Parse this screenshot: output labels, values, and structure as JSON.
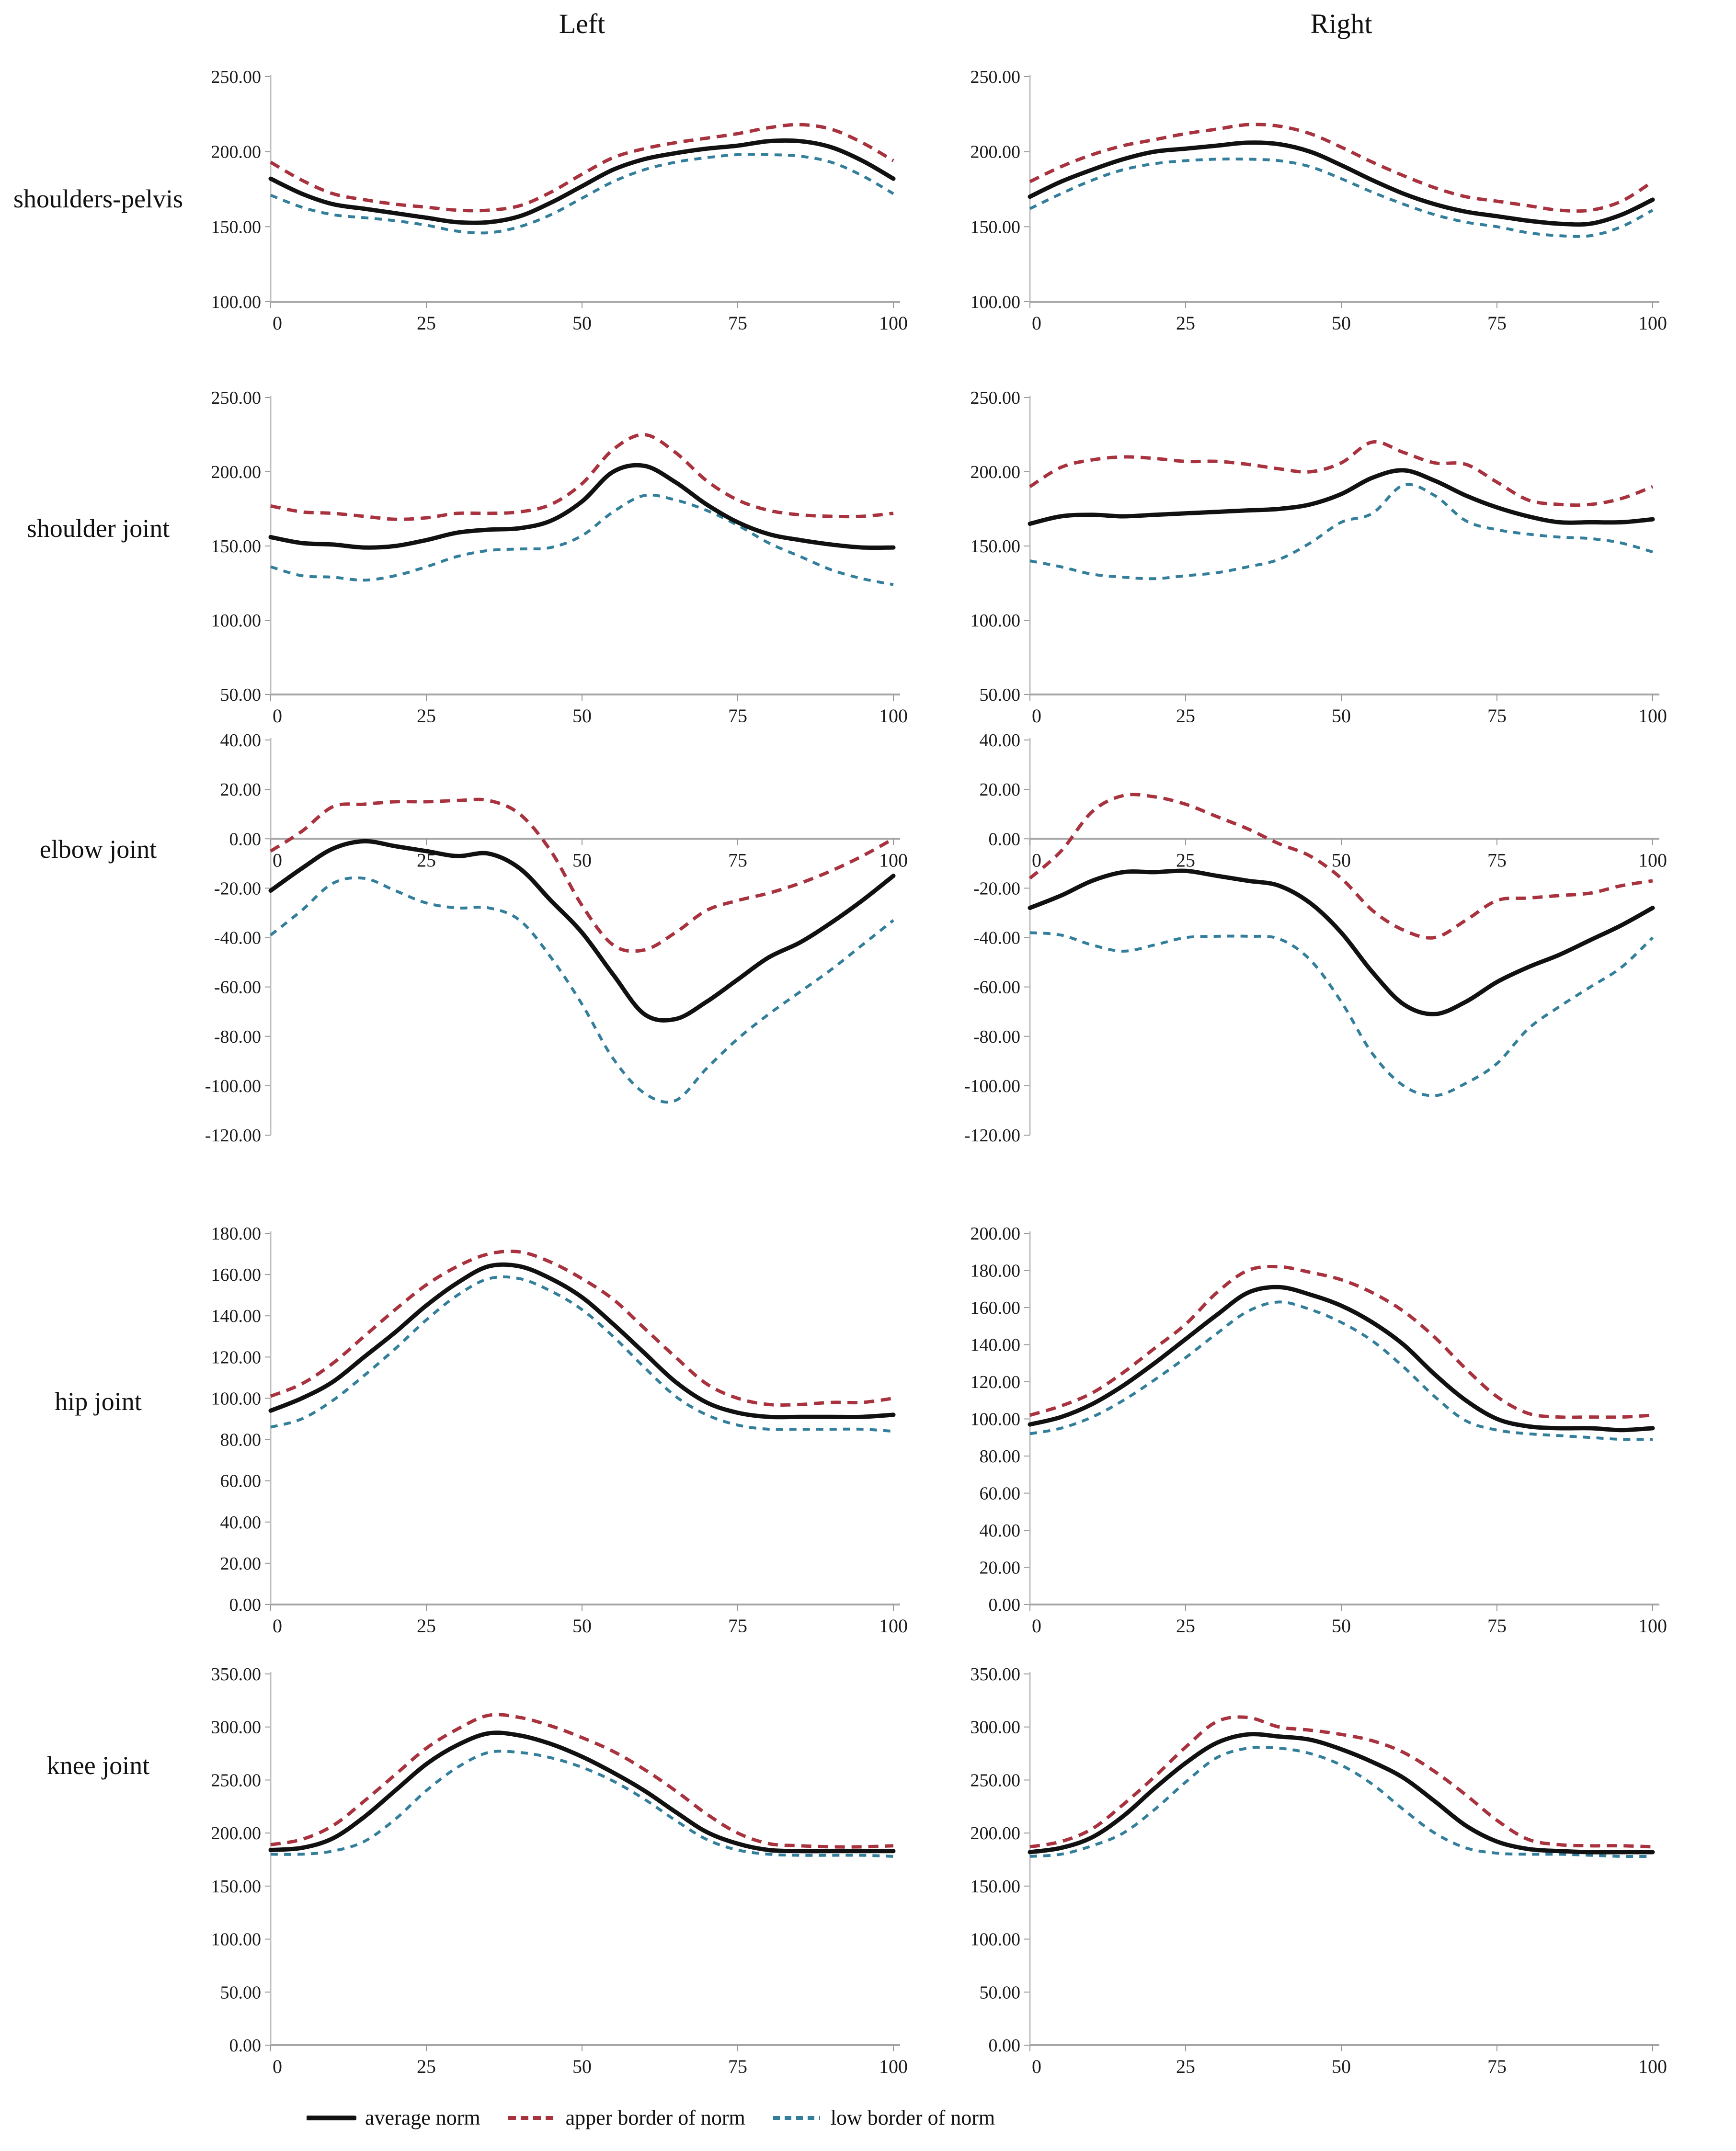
{
  "page": {
    "title_left": "Left",
    "title_right": "Right"
  },
  "colors": {
    "avg": "#111111",
    "upper": "#A8323E",
    "lower": "#337F9B",
    "axis_v": "#BFBFBF",
    "axis_h": "#A6A6A6",
    "tick": "#999999",
    "text": "#1a1a1a"
  },
  "legend": {
    "items": [
      {
        "label": "average norm",
        "series": "avg"
      },
      {
        "label": "apper border of norm",
        "series": "upper"
      },
      {
        "label": "low border of norm",
        "series": "lower"
      }
    ]
  },
  "chart_data": {
    "type": "line",
    "x": [
      0,
      5,
      10,
      15,
      20,
      25,
      30,
      35,
      40,
      45,
      50,
      55,
      60,
      65,
      70,
      75,
      80,
      85,
      90,
      95,
      100
    ],
    "x_ticks": [
      0,
      25,
      50,
      75,
      100
    ],
    "series_names": [
      "average norm",
      "apper border of norm",
      "low border of norm"
    ],
    "rows": [
      {
        "label": "shoulders-pelvis",
        "left": {
          "ylim": [
            100,
            250
          ],
          "ystep": 50,
          "x_axis_at": 100,
          "series": {
            "avg": [
              182,
              172,
              165,
              162,
              159,
              156,
              153,
              153,
              157,
              166,
              177,
              188,
              195,
              199,
              202,
              204,
              207,
              207,
              203,
              194,
              182
            ],
            "upper": [
              193,
              181,
              172,
              168,
              165,
              163,
              161,
              161,
              164,
              173,
              185,
              196,
              202,
              206,
              209,
              212,
              216,
              218,
              215,
              206,
              194
            ],
            "lower": [
              171,
              163,
              158,
              156,
              154,
              151,
              147,
              146,
              150,
              158,
              169,
              180,
              188,
              193,
              196,
              198,
              198,
              197,
              193,
              184,
              172
            ]
          }
        },
        "right": {
          "ylim": [
            100,
            250
          ],
          "ystep": 50,
          "x_axis_at": 100,
          "series": {
            "avg": [
              170,
              180,
              188,
              195,
              200,
              202,
              204,
              206,
              205,
              200,
              191,
              181,
              172,
              165,
              160,
              157,
              154,
              152,
              152,
              158,
              168
            ],
            "upper": [
              180,
              190,
              198,
              204,
              208,
              212,
              215,
              218,
              217,
              212,
              203,
              193,
              184,
              176,
              170,
              167,
              164,
              161,
              161,
              167,
              180
            ],
            "lower": [
              162,
              172,
              181,
              188,
              192,
              194,
              195,
              195,
              194,
              190,
              182,
              173,
              165,
              158,
              153,
              150,
              146,
              144,
              144,
              150,
              161
            ]
          }
        }
      },
      {
        "label": "shoulder joint",
        "left": {
          "ylim": [
            50,
            250
          ],
          "ystep": 50,
          "x_axis_at": 50,
          "series": {
            "avg": [
              156,
              152,
              151,
              149,
              150,
              154,
              159,
              161,
              162,
              167,
              180,
              200,
              204,
              193,
              178,
              166,
              158,
              154,
              151,
              149,
              149
            ],
            "upper": [
              177,
              173,
              172,
              170,
              168,
              169,
              172,
              172,
              173,
              178,
              192,
              215,
              225,
              213,
              194,
              181,
              174,
              171,
              170,
              170,
              172
            ],
            "lower": [
              136,
              130,
              129,
              127,
              130,
              136,
              143,
              147,
              148,
              149,
              157,
              173,
              184,
              181,
              174,
              164,
              152,
              143,
              134,
              128,
              124
            ]
          }
        },
        "right": {
          "ylim": [
            50,
            250
          ],
          "ystep": 50,
          "x_axis_at": 50,
          "series": {
            "avg": [
              165,
              170,
              171,
              170,
              171,
              172,
              173,
              174,
              175,
              178,
              185,
              196,
              201,
              194,
              184,
              176,
              170,
              166,
              166,
              166,
              168
            ],
            "upper": [
              190,
              203,
              208,
              210,
              209,
              207,
              207,
              205,
              202,
              200,
              206,
              220,
              213,
              206,
              205,
              193,
              181,
              178,
              178,
              182,
              190
            ],
            "lower": [
              140,
              136,
              131,
              129,
              128,
              130,
              132,
              136,
              141,
              152,
              166,
              172,
              191,
              184,
              167,
              161,
              158,
              156,
              155,
              152,
              146
            ]
          }
        }
      },
      {
        "label": "elbow joint",
        "left": {
          "ylim": [
            -120,
            40
          ],
          "ystep": 20,
          "x_axis_at": 0,
          "series": {
            "avg": [
              -21,
              -12,
              -4,
              -1,
              -3,
              -5,
              -7,
              -6,
              -12,
              -25,
              -38,
              -55,
              -71,
              -73,
              -66,
              -57,
              -48,
              -42,
              -34,
              -25,
              -15
            ],
            "upper": [
              -5,
              3,
              13,
              14,
              15,
              15,
              15.5,
              15.5,
              10,
              -5,
              -27,
              -43,
              -45,
              -38,
              -29,
              -25,
              -22,
              -18,
              -13,
              -7,
              0
            ],
            "lower": [
              -39,
              -29,
              -18,
              -16,
              -21,
              -26,
              -28,
              -28,
              -33,
              -48,
              -67,
              -89,
              -103,
              -106,
              -93,
              -81,
              -71,
              -62,
              -53,
              -43,
              -33
            ]
          }
        },
        "right": {
          "ylim": [
            -120,
            40
          ],
          "ystep": 20,
          "x_axis_at": 0,
          "series": {
            "avg": [
              -28,
              -23,
              -17,
              -13.5,
              -13.5,
              -13,
              -15,
              -17,
              -19,
              -26,
              -38,
              -54,
              -67,
              -71,
              -66,
              -58,
              -52,
              -47,
              -41,
              -35,
              -28
            ],
            "upper": [
              -16,
              -5,
              11,
              17.5,
              17,
              14,
              9,
              4,
              -2,
              -7,
              -16,
              -29,
              -37,
              -40,
              -33,
              -25,
              -24,
              -23,
              -22,
              -19,
              -17
            ],
            "lower": [
              -38,
              -39,
              -43,
              -45.5,
              -43,
              -40,
              -39.5,
              -39.5,
              -40.5,
              -49,
              -66,
              -87,
              -100,
              -104,
              -99,
              -91,
              -77,
              -68,
              -60,
              -52,
              -40
            ]
          }
        }
      },
      {
        "label": "hip joint",
        "left": {
          "ylim": [
            0,
            180
          ],
          "ystep": 20,
          "x_axis_at": 0,
          "series": {
            "avg": [
              94,
              100,
              108,
              120,
              132,
              145,
              156,
              164,
              164,
              158,
              149,
              136,
              122,
              108,
              98,
              93,
              91,
              91,
              91,
              91,
              92
            ],
            "upper": [
              101,
              107,
              117,
              130,
              143,
              155,
              164,
              170,
              171,
              166,
              158,
              148,
              134,
              120,
              107,
              100,
              97,
              97,
              98,
              98,
              100
            ],
            "lower": [
              86,
              90,
              99,
              111,
              124,
              138,
              150,
              158,
              158,
              152,
              143,
              130,
              115,
              101,
              92,
              87,
              85,
              85,
              85,
              85,
              84
            ]
          }
        },
        "right": {
          "ylim": [
            0,
            200
          ],
          "ystep": 20,
          "x_axis_at": 0,
          "series": {
            "avg": [
              97,
              101,
              108,
              118,
              130,
              143,
              156,
              168,
              171,
              167,
              161,
              152,
              140,
              124,
              110,
              100,
              96,
              95,
              95,
              94,
              95
            ],
            "upper": [
              102,
              107,
              114,
              125,
              138,
              151,
              168,
              180,
              182,
              179,
              175,
              168,
              158,
              144,
              127,
              112,
              103,
              101,
              101,
              101,
              102
            ],
            "lower": [
              92,
              95,
              101,
              110,
              121,
              133,
              146,
              158,
              163,
              159,
              152,
              142,
              128,
              112,
              99,
              94,
              92,
              91,
              90,
              89,
              89
            ]
          }
        }
      },
      {
        "label": "knee joint",
        "left": {
          "ylim": [
            0,
            350
          ],
          "ystep": 50,
          "x_axis_at": 0,
          "series": {
            "avg": [
              184,
              186,
              195,
              215,
              240,
              265,
              283,
              294,
              292,
              284,
              272,
              257,
              240,
              220,
              201,
              190,
              184,
              183,
              183,
              183,
              183
            ],
            "upper": [
              189,
              194,
              207,
              230,
              255,
              280,
              298,
              311,
              309,
              301,
              290,
              277,
              260,
              240,
              218,
              200,
              190,
              188,
              187,
              187,
              188
            ],
            "lower": [
              180,
              180,
              183,
              192,
              213,
              240,
              262,
              276,
              276,
              271,
              262,
              249,
              232,
              212,
              194,
              184,
              180,
              179,
              179,
              179,
              178
            ]
          }
        },
        "right": {
          "ylim": [
            0,
            350
          ],
          "ystep": 50,
          "x_axis_at": 0,
          "series": {
            "avg": [
              182,
              186,
              196,
              216,
              242,
              266,
              285,
              293,
              291,
              288,
              279,
              267,
              252,
              230,
              207,
              192,
              185,
              183,
              182,
              182,
              182
            ],
            "upper": [
              187,
              192,
              204,
              227,
              253,
              281,
              305,
              309,
              300,
              297,
              293,
              287,
              276,
              258,
              236,
              212,
              194,
              189,
              188,
              188,
              187
            ],
            "lower": [
              178,
              180,
              188,
              200,
              222,
              248,
              271,
              280,
              280,
              275,
              264,
              246,
              222,
              200,
              186,
              181,
              180,
              180,
              179,
              178,
              178
            ]
          }
        }
      }
    ]
  }
}
